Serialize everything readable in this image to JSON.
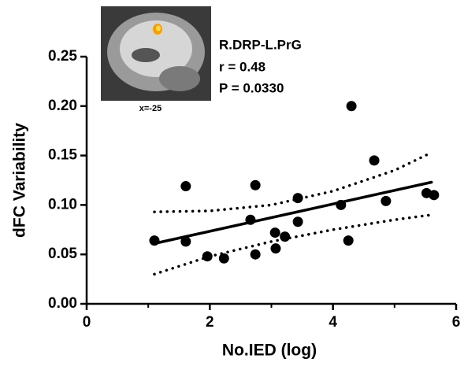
{
  "chart_data": {
    "type": "scatter",
    "xlabel": "No.IED (log)",
    "ylabel": "dFC Variability",
    "x": [
      1.1,
      1.61,
      1.61,
      1.96,
      2.23,
      2.66,
      2.74,
      2.74,
      3.06,
      3.07,
      3.22,
      3.43,
      3.43,
      4.3,
      4.13,
      4.25,
      4.67,
      4.86,
      5.52,
      5.64
    ],
    "values": [
      0.064,
      0.119,
      0.063,
      0.048,
      0.046,
      0.085,
      0.12,
      0.05,
      0.072,
      0.056,
      0.068,
      0.107,
      0.083,
      0.2,
      0.1,
      0.064,
      0.145,
      0.104,
      0.112,
      0.11
    ],
    "color": "#000000",
    "fit_line": {
      "x": [
        1.1,
        5.6
      ],
      "y": [
        0.061,
        0.123
      ]
    },
    "ci_upper": {
      "x": [
        1.1,
        2,
        3,
        4,
        5,
        5.6
      ],
      "y": [
        0.093,
        0.094,
        0.1,
        0.114,
        0.135,
        0.153
      ]
    },
    "ci_lower": {
      "x": [
        1.1,
        2,
        3,
        4,
        5,
        5.6
      ],
      "y": [
        0.03,
        0.048,
        0.063,
        0.075,
        0.085,
        0.09
      ]
    },
    "xlim": [
      0,
      6
    ],
    "xticks": [
      0,
      2,
      4,
      6
    ],
    "xminorticks": [
      1,
      3,
      5
    ],
    "ylim": [
      0,
      0.25
    ],
    "yticks": [
      {
        "value": 0,
        "label": "0.00"
      },
      {
        "value": 0.05,
        "label": "0.05"
      },
      {
        "value": 0.1,
        "label": "0.10"
      },
      {
        "value": 0.15,
        "label": "0.15"
      },
      {
        "value": 0.2,
        "label": "0.20"
      },
      {
        "value": 0.25,
        "label": "0.25"
      }
    ],
    "annotations": [
      "R.DRP-L.PrG",
      "r = 0.48",
      "P = 0.0330"
    ],
    "inset_label": "x=-25"
  }
}
